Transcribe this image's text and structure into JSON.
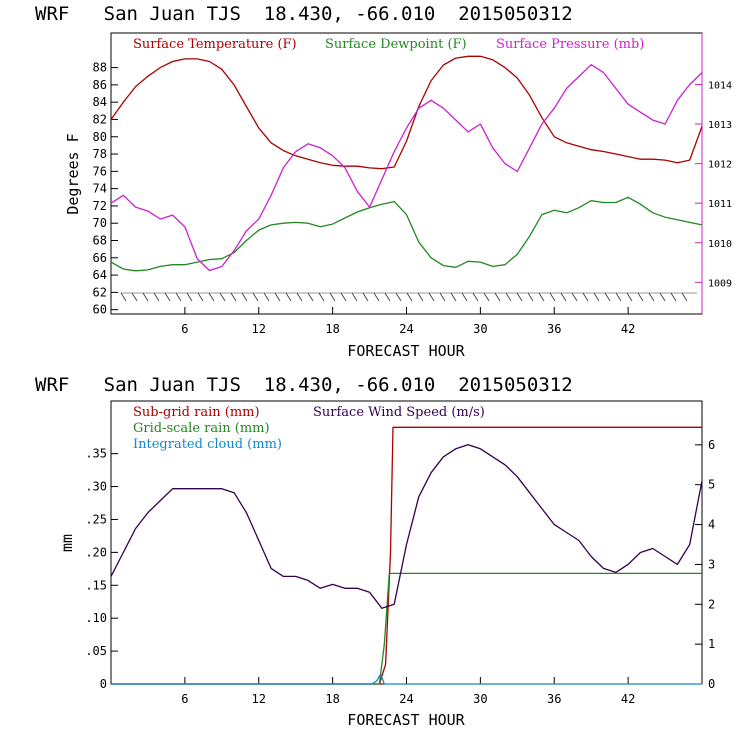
{
  "chart_data": [
    {
      "type": "line",
      "title": "WRF   San Juan TJS  18.430, -66.010  2015050312",
      "xlabel": "FORECAST HOUR",
      "ylabel": "Degrees F",
      "xlim": [
        0,
        48
      ],
      "ylim": [
        59.5,
        92
      ],
      "y2lim": [
        1008.2,
        1015.3
      ],
      "xticks": [
        "6",
        "12",
        "18",
        "24",
        "30",
        "36",
        "42"
      ],
      "yticks": [
        "60",
        "62",
        "64",
        "66",
        "68",
        "70",
        "72",
        "74",
        "76",
        "78",
        "80",
        "82",
        "84",
        "86",
        "88"
      ],
      "y2ticks": [
        "1009",
        "1010",
        "1011",
        "1012",
        "1013",
        "1014"
      ],
      "legend_position": "top",
      "series": [
        {
          "name": "Surface Temperature (F)",
          "color": "#aa0000",
          "axis": "left",
          "x": [
            0,
            1,
            2,
            3,
            4,
            5,
            6,
            7,
            8,
            9,
            10,
            11,
            12,
            13,
            14,
            15,
            16,
            17,
            18,
            19,
            20,
            21,
            22,
            23,
            24,
            25,
            26,
            27,
            28,
            29,
            30,
            31,
            32,
            33,
            34,
            35,
            36,
            37,
            38,
            39,
            40,
            41,
            42,
            43,
            44,
            45,
            46,
            47,
            48
          ],
          "y": [
            82,
            84,
            85.8,
            87,
            88,
            88.7,
            89,
            89,
            88.7,
            87.8,
            86,
            83.5,
            81,
            79.3,
            78.4,
            77.8,
            77.4,
            77,
            76.7,
            76.6,
            76.6,
            76.4,
            76.3,
            76.5,
            79.5,
            83.5,
            86.5,
            88.3,
            89.1,
            89.3,
            89.3,
            88.9,
            88,
            86.8,
            84.8,
            82.2,
            80,
            79.3,
            78.9,
            78.5,
            78.3,
            78,
            77.7,
            77.4,
            77.4,
            77.3,
            77,
            77.3,
            81.2
          ]
        },
        {
          "name": "Surface Dewpoint (F)",
          "color": "#228822",
          "axis": "left",
          "x": [
            0,
            1,
            2,
            3,
            4,
            5,
            6,
            7,
            8,
            9,
            10,
            11,
            12,
            13,
            14,
            15,
            16,
            17,
            18,
            19,
            20,
            21,
            22,
            23,
            24,
            25,
            26,
            27,
            28,
            29,
            30,
            31,
            32,
            33,
            34,
            35,
            36,
            37,
            38,
            39,
            40,
            41,
            42,
            43,
            44,
            45,
            46,
            47,
            48
          ],
          "y": [
            65.5,
            64.7,
            64.5,
            64.6,
            65,
            65.2,
            65.2,
            65.5,
            65.8,
            65.9,
            66.6,
            68,
            69.2,
            69.8,
            70,
            70.1,
            70,
            69.6,
            69.9,
            70.6,
            71.3,
            71.8,
            72.2,
            72.5,
            71,
            67.8,
            66,
            65.1,
            64.9,
            65.6,
            65.5,
            65,
            65.2,
            66.4,
            68.5,
            71,
            71.5,
            71.2,
            71.8,
            72.6,
            72.4,
            72.4,
            73,
            72.2,
            71.2,
            70.7,
            70.4,
            70.1,
            69.8
          ]
        },
        {
          "name": "Surface Pressure (mb)",
          "color": "#cc22cc",
          "axis": "right",
          "x": [
            0,
            1,
            2,
            3,
            4,
            5,
            6,
            7,
            8,
            9,
            10,
            11,
            12,
            13,
            14,
            15,
            16,
            17,
            18,
            19,
            20,
            21,
            22,
            23,
            24,
            25,
            26,
            27,
            28,
            29,
            30,
            31,
            32,
            33,
            34,
            35,
            36,
            37,
            38,
            39,
            40,
            41,
            42,
            43,
            44,
            45,
            46,
            47,
            48
          ],
          "y": [
            1011,
            1011.2,
            1010.9,
            1010.8,
            1010.6,
            1010.7,
            1010.4,
            1009.6,
            1009.3,
            1009.4,
            1009.8,
            1010.3,
            1010.6,
            1011.2,
            1011.9,
            1012.3,
            1012.5,
            1012.4,
            1012.2,
            1011.9,
            1011.3,
            1010.9,
            1011.6,
            1012.3,
            1012.9,
            1013.4,
            1013.6,
            1013.4,
            1013.1,
            1012.8,
            1013,
            1012.4,
            1012,
            1011.8,
            1012.4,
            1013,
            1013.4,
            1013.9,
            1014.2,
            1014.5,
            1014.3,
            1013.9,
            1013.5,
            1013.3,
            1013.1,
            1013,
            1013.6,
            1014,
            1014.3
          ]
        }
      ]
    },
    {
      "type": "line",
      "title": "WRF   San Juan TJS  18.430, -66.010  2015050312",
      "xlabel": "FORECAST HOUR",
      "ylabel": "mm",
      "xlim": [
        0,
        48
      ],
      "ylim": [
        0,
        0.43
      ],
      "y2lim": [
        0,
        7.1
      ],
      "xticks": [
        "6",
        "12",
        "18",
        "24",
        "30",
        "36",
        "42"
      ],
      "yticks": [
        "0",
        ".05",
        ".10",
        ".15",
        ".20",
        ".25",
        ".30",
        ".35"
      ],
      "y2ticks": [
        "0",
        "1",
        "2",
        "3",
        "4",
        "5",
        "6"
      ],
      "legend_position": "top-left",
      "series": [
        {
          "name": "Sub-grid rain (mm)",
          "color": "#aa0000",
          "axis": "left",
          "x": [
            0,
            21.8,
            22.3,
            22.7,
            22.9,
            48
          ],
          "y": [
            0,
            0,
            0.03,
            0.2,
            0.39,
            0.39
          ]
        },
        {
          "name": "Grid-scale rain (mm)",
          "color": "#228822",
          "axis": "left",
          "x": [
            0,
            21.8,
            22.2,
            22.6,
            48
          ],
          "y": [
            0,
            0,
            0.06,
            0.168,
            0.168
          ]
        },
        {
          "name": "Integrated cloud (mm)",
          "color": "#1188cc",
          "axis": "left",
          "x": [
            0,
            21.2,
            21.6,
            21.9,
            22.2,
            48
          ],
          "y": [
            0,
            0,
            0.005,
            0.015,
            0,
            0
          ]
        },
        {
          "name": "Surface Wind Speed (m/s)",
          "color": "#33004d",
          "axis": "right",
          "x": [
            0,
            1,
            2,
            3,
            4,
            5,
            6,
            7,
            8,
            9,
            10,
            11,
            12,
            13,
            14,
            15,
            16,
            17,
            18,
            19,
            20,
            21,
            22,
            23,
            24,
            25,
            26,
            27,
            28,
            29,
            30,
            31,
            32,
            33,
            34,
            35,
            36,
            37,
            38,
            39,
            40,
            41,
            42,
            43,
            44,
            45,
            46,
            47,
            48
          ],
          "y": [
            2.7,
            3.3,
            3.9,
            4.3,
            4.6,
            4.9,
            4.9,
            4.9,
            4.9,
            4.9,
            4.8,
            4.3,
            3.6,
            2.9,
            2.7,
            2.7,
            2.6,
            2.4,
            2.5,
            2.4,
            2.4,
            2.3,
            1.9,
            2.0,
            3.5,
            4.7,
            5.3,
            5.7,
            5.9,
            6.0,
            5.9,
            5.7,
            5.5,
            5.2,
            4.8,
            4.4,
            4.0,
            3.8,
            3.6,
            3.2,
            2.9,
            2.8,
            3.0,
            3.3,
            3.4,
            3.2,
            3.0,
            3.5,
            5.1
          ]
        }
      ]
    }
  ]
}
